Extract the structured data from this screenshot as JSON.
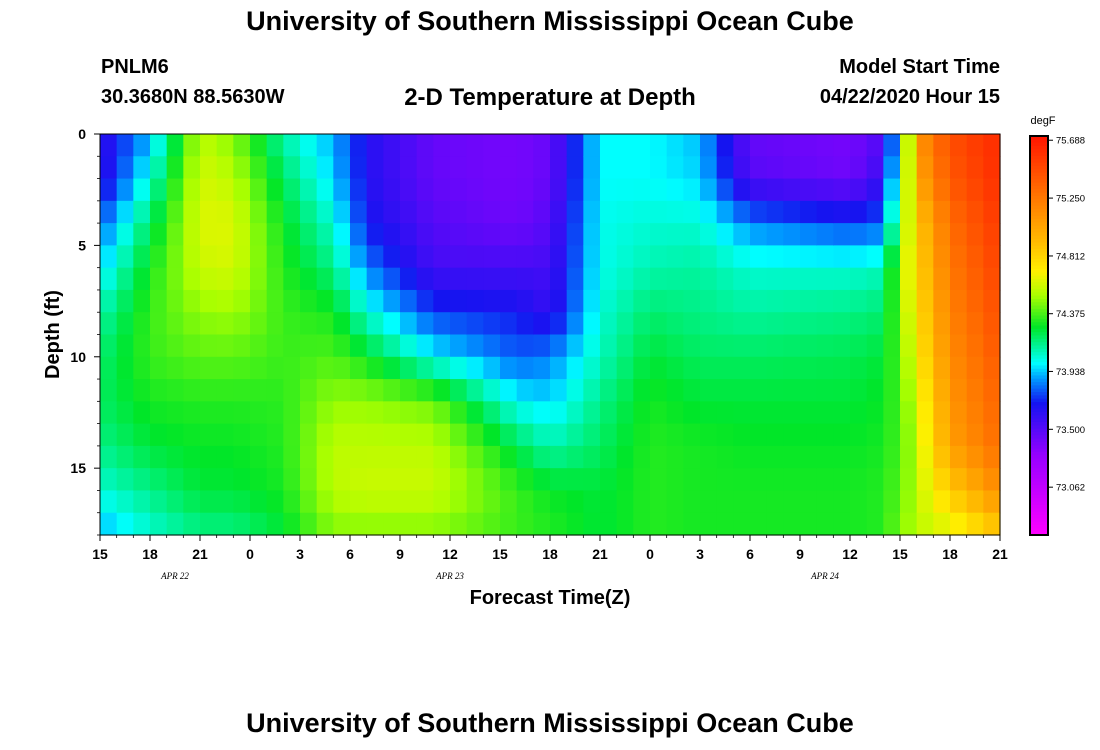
{
  "header": {
    "title": "University of Southern Mississippi Ocean Cube",
    "station": "PNLM6",
    "coordinates": "30.3680N 88.5630W",
    "subtitle": "2-D Temperature at Depth",
    "model_start_label": "Model Start Time",
    "model_start_value": "04/22/2020 Hour 15"
  },
  "footer": {
    "title": "University of Southern Mississippi Ocean Cube"
  },
  "chart_data": {
    "type": "heatmap",
    "title": "2-D Temperature at Depth",
    "xlabel": "Forecast Time(Z)",
    "ylabel": "Depth (ft)",
    "x_start": "04/22/2020 Hour 15",
    "x_range_hours": [
      0,
      54
    ],
    "y_range_ft": [
      0,
      18
    ],
    "y_reversed": true,
    "x_tick_hours": [
      0,
      3,
      6,
      9,
      12,
      15,
      18,
      21,
      24,
      27,
      30,
      33,
      36,
      39,
      42,
      45,
      48,
      51,
      54
    ],
    "x_tick_labels": [
      "15",
      "18",
      "21",
      "0",
      "3",
      "6",
      "9",
      "12",
      "15",
      "18",
      "21",
      "0",
      "3",
      "6",
      "9",
      "12",
      "15",
      "18",
      "21"
    ],
    "date_labels": [
      {
        "text": "APR 22",
        "hour": 4.5
      },
      {
        "text": "APR 23",
        "hour": 21
      },
      {
        "text": "APR 24",
        "hour": 43.5
      }
    ],
    "y_ticks": [
      0,
      5,
      10,
      15
    ],
    "y_tick_labels": [
      "0",
      "5",
      "10",
      "15"
    ],
    "colorbar": {
      "unit": "degF",
      "labels": [
        "75.688",
        "75.250",
        "74.812",
        "74.375",
        "73.938",
        "73.500",
        "73.062"
      ],
      "min": 72.7,
      "max": 75.72
    },
    "depth_levels_ft": [
      0,
      2,
      4,
      6,
      8,
      10,
      12,
      14,
      16,
      18
    ],
    "temperature_grid_by_depth": [
      {
        "hour": 0,
        "values": [
          73.6,
          73.6,
          73.8,
          73.95,
          74.1,
          74.18,
          74.2,
          74.15,
          74.05,
          73.9
        ]
      },
      {
        "hour": 3,
        "values": [
          73.9,
          74.05,
          74.2,
          74.3,
          74.35,
          74.35,
          74.3,
          74.25,
          74.15,
          74.05
        ]
      },
      {
        "hour": 6,
        "values": [
          74.55,
          74.6,
          74.62,
          74.58,
          74.48,
          74.4,
          74.32,
          74.28,
          74.25,
          74.15
        ]
      },
      {
        "hour": 8,
        "values": [
          74.45,
          74.55,
          74.62,
          74.6,
          74.5,
          74.4,
          74.32,
          74.28,
          74.25,
          74.15
        ]
      },
      {
        "hour": 11,
        "values": [
          74.1,
          74.2,
          74.28,
          74.32,
          74.35,
          74.35,
          74.33,
          74.32,
          74.3,
          74.25
        ]
      },
      {
        "hour": 14,
        "values": [
          73.9,
          73.95,
          74.05,
          74.15,
          74.3,
          74.38,
          74.48,
          74.55,
          74.55,
          74.45
        ]
      },
      {
        "hour": 16,
        "values": [
          73.65,
          73.65,
          73.7,
          73.85,
          74.05,
          74.28,
          74.48,
          74.55,
          74.58,
          74.45
        ]
      },
      {
        "hour": 20,
        "values": [
          73.45,
          73.45,
          73.5,
          73.55,
          73.75,
          74.0,
          74.42,
          74.55,
          74.58,
          74.45
        ]
      },
      {
        "hour": 25,
        "values": [
          73.4,
          73.4,
          73.42,
          73.55,
          73.7,
          73.8,
          74.0,
          74.22,
          74.35,
          74.35
        ]
      },
      {
        "hour": 27,
        "values": [
          73.45,
          73.45,
          73.5,
          73.55,
          73.6,
          73.85,
          73.95,
          74.1,
          74.28,
          74.32
        ]
      },
      {
        "hour": 30,
        "values": [
          74.0,
          74.0,
          74.02,
          74.02,
          74.05,
          74.08,
          74.15,
          74.2,
          74.25,
          74.25
        ]
      },
      {
        "hour": 33,
        "values": [
          74.0,
          74.0,
          74.05,
          74.1,
          74.18,
          74.25,
          74.3,
          74.32,
          74.32,
          74.32
        ]
      },
      {
        "hour": 36,
        "values": [
          73.92,
          73.95,
          74.05,
          74.12,
          74.15,
          74.2,
          74.25,
          74.3,
          74.3,
          74.3
        ]
      },
      {
        "hour": 39,
        "values": [
          73.45,
          73.5,
          73.85,
          74.05,
          74.12,
          74.2,
          74.25,
          74.28,
          74.3,
          74.3
        ]
      },
      {
        "hour": 45,
        "values": [
          73.4,
          73.42,
          73.75,
          74.05,
          74.15,
          74.22,
          74.25,
          74.28,
          74.3,
          74.3
        ]
      },
      {
        "hour": 47,
        "values": [
          73.5,
          73.6,
          73.8,
          74.08,
          74.18,
          74.25,
          74.28,
          74.3,
          74.32,
          74.32
        ]
      },
      {
        "hour": 48,
        "values": [
          74.05,
          74.2,
          74.35,
          74.5,
          74.45,
          74.4,
          74.38,
          74.38,
          74.4,
          74.45
        ]
      },
      {
        "hour": 49,
        "values": [
          75.1,
          75.0,
          74.85,
          74.8,
          74.75,
          74.7,
          74.6,
          74.55,
          74.55,
          74.55
        ]
      },
      {
        "hour": 51,
        "values": [
          75.45,
          75.4,
          75.3,
          75.25,
          75.2,
          75.15,
          75.1,
          75.05,
          74.85,
          74.6
        ]
      },
      {
        "hour": 54,
        "values": [
          75.62,
          75.6,
          75.55,
          75.5,
          75.45,
          75.4,
          75.35,
          75.3,
          75.15,
          74.85
        ]
      }
    ]
  }
}
